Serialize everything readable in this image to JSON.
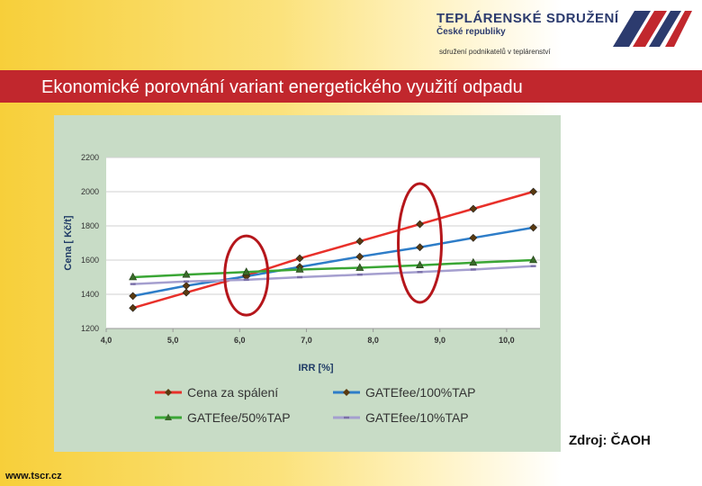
{
  "header": {
    "org_name": "TEPLÁRENSKÉ SDRUŽENÍ",
    "org_country": "České republiky",
    "org_tagline": "sdružení podnikatelů v teplárenství",
    "slide_title": "Ekonomické porovnání variant energetického využití odpadu"
  },
  "footer": {
    "source": "Zdroj: ČAOH",
    "url": "www.tscr.cz"
  },
  "colors": {
    "header_bar": "#c1272d",
    "logo_navy": "#2c3b6e",
    "highlight_ellipse": "#b5161b"
  },
  "chart_data": {
    "type": "line",
    "xlabel": "IRR [%]",
    "ylabel": "Cena [ Kč/t]",
    "xlim": [
      4.0,
      10.5
    ],
    "ylim": [
      1200,
      2200
    ],
    "x_ticks": [
      "4,0",
      "5,0",
      "6,0",
      "7,0",
      "8,0",
      "9,0",
      "10,0"
    ],
    "y_ticks": [
      "1200",
      "1400",
      "1600",
      "1800",
      "2000",
      "2200"
    ],
    "grid": true,
    "legend_position": "bottom",
    "series": [
      {
        "name": "Cena za spálení",
        "color": "#e8302a",
        "marker": "diamond",
        "x": [
          4.4,
          5.2,
          6.1,
          6.9,
          7.8,
          8.7,
          9.5,
          10.4
        ],
        "y": [
          1320,
          1410,
          1510,
          1610,
          1710,
          1810,
          1900,
          2000
        ]
      },
      {
        "name": "GATEfee/100%TAP",
        "color": "#2e7dc8",
        "marker": "diamond",
        "x": [
          4.4,
          5.2,
          6.1,
          6.9,
          7.8,
          8.7,
          9.5,
          10.4
        ],
        "y": [
          1390,
          1450,
          1505,
          1560,
          1620,
          1675,
          1730,
          1790
        ]
      },
      {
        "name": "GATEfee/50%TAP",
        "color": "#3aa635",
        "marker": "triangle",
        "x": [
          4.4,
          5.2,
          6.1,
          6.9,
          7.8,
          8.7,
          9.5,
          10.4
        ],
        "y": [
          1500,
          1515,
          1530,
          1545,
          1555,
          1570,
          1585,
          1600
        ]
      },
      {
        "name": "GATEfee/10%TAP",
        "color": "#a59fcf",
        "marker": "dash",
        "x": [
          4.4,
          5.2,
          6.1,
          6.9,
          7.8,
          8.7,
          9.5,
          10.4
        ],
        "y": [
          1460,
          1475,
          1485,
          1500,
          1515,
          1530,
          1545,
          1565
        ]
      }
    ],
    "highlights": [
      {
        "shape": "ellipse",
        "x_center": 6.1,
        "y_center": 1510
      },
      {
        "shape": "ellipse",
        "x_center": 8.7,
        "y_center": 1700
      }
    ]
  }
}
